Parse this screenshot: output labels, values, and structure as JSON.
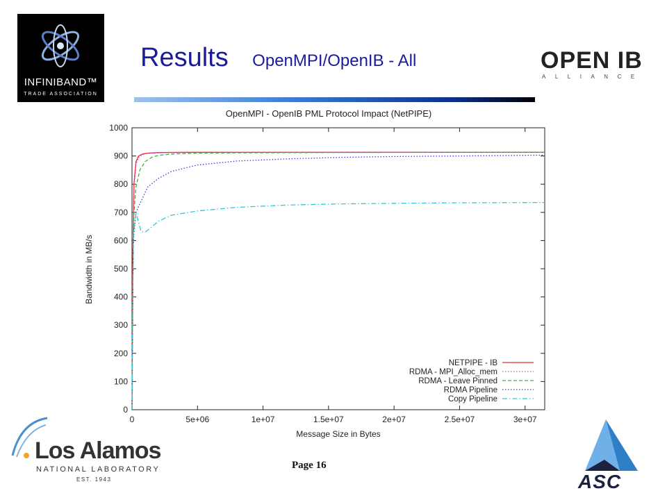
{
  "slide": {
    "title_main": "Results",
    "title_sub": "OpenMPI/OpenIB - All",
    "page_label": "Page 16"
  },
  "logos": {
    "infiniband_name": "INFINIBAND™",
    "infiniband_sub": "TRADE ASSOCIATION",
    "openib_word": "OPEN IB",
    "openib_sub": "ALLIANCE",
    "lanl_name": "Los Alamos",
    "lanl_sub": "NATIONAL LABORATORY",
    "lanl_est": "EST. 1943",
    "asc_word": "ASC"
  },
  "chart_data": {
    "type": "line",
    "title": "OpenMPI - OpenIB PML Protocol Impact (NetPIPE)",
    "xlabel": "Message Size in Bytes",
    "ylabel": "Bandwidth in MB/s",
    "xlim": [
      0,
      31500000
    ],
    "ylim": [
      0,
      1000
    ],
    "x_ticks": [
      0,
      5000000,
      10000000,
      15000000,
      20000000,
      25000000,
      30000000
    ],
    "x_tick_labels": [
      "0",
      "5e+06",
      "1e+07",
      "1.5e+07",
      "2e+07",
      "2.5e+07",
      "3e+07"
    ],
    "y_ticks": [
      0,
      100,
      200,
      300,
      400,
      500,
      600,
      700,
      800,
      900,
      1000
    ],
    "y_tick_labels": [
      "0",
      "100",
      "200",
      "300",
      "400",
      "500",
      "600",
      "700",
      "800",
      "900",
      "1000"
    ],
    "grid": false,
    "legend_position": "bottom-right",
    "series": [
      {
        "name": "NETPIPE - IB",
        "color": "#e8302a",
        "dash": "solid",
        "x": [
          0,
          50000,
          150000,
          300000,
          500000,
          800000,
          1200000,
          2000000,
          4000000,
          8000000,
          15000000,
          25000000,
          31500000
        ],
        "y": [
          0,
          500,
          800,
          880,
          900,
          907,
          910,
          912,
          913,
          913,
          913,
          913,
          913
        ]
      },
      {
        "name": "RDMA - MPI_Alloc_mem",
        "color": "#d040d0",
        "dash": "dotted",
        "x": [
          0,
          50000,
          150000,
          300000,
          500000,
          800000,
          1200000,
          2000000,
          4000000,
          8000000,
          15000000,
          25000000,
          31500000
        ],
        "y": [
          0,
          480,
          780,
          870,
          895,
          905,
          909,
          911,
          912,
          913,
          913,
          913,
          913
        ]
      },
      {
        "name": "RDMA - Leave Pinned",
        "color": "#40b040",
        "dash": "dashed",
        "x": [
          0,
          50000,
          150000,
          300000,
          600000,
          1000000,
          1500000,
          2000000,
          3000000,
          5000000,
          8000000,
          15000000,
          25000000,
          31500000
        ],
        "y": [
          0,
          420,
          700,
          790,
          850,
          880,
          895,
          902,
          907,
          910,
          911,
          912,
          913,
          913
        ]
      },
      {
        "name": "RDMA Pipeline",
        "color": "#3a3ad0",
        "dash": "dotted",
        "x": [
          0,
          100000,
          300000,
          500000,
          800000,
          1200000,
          2000000,
          3000000,
          5000000,
          8000000,
          12000000,
          16000000,
          20000000,
          25000000,
          31500000
        ],
        "y": [
          0,
          600,
          700,
          720,
          750,
          790,
          820,
          845,
          868,
          882,
          890,
          895,
          898,
          900,
          903
        ]
      },
      {
        "name": "Copy Pipeline",
        "color": "#30c8d8",
        "dash": "dashdot",
        "x": [
          0,
          100000,
          300000,
          500000,
          700000,
          1000000,
          1500000,
          2000000,
          3000000,
          5000000,
          8000000,
          12000000,
          16000000,
          20000000,
          25000000,
          31500000
        ],
        "y": [
          0,
          620,
          700,
          665,
          632,
          630,
          648,
          668,
          690,
          705,
          718,
          726,
          730,
          732,
          734,
          735
        ]
      }
    ]
  }
}
